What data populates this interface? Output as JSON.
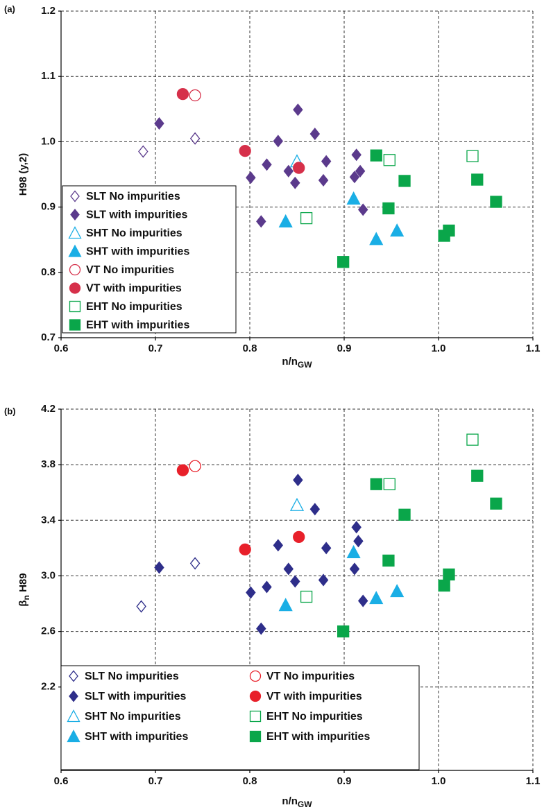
{
  "chart_data": [
    {
      "type": "scatter",
      "panel": "(a)",
      "x_label": [
        "n/n",
        "GW"
      ],
      "y_label": [
        "H98 (y,2)"
      ],
      "xlim": [
        0.6,
        1.1
      ],
      "xticks": [
        0.6,
        0.7,
        0.8,
        0.9,
        {
          "value": 1,
          "label": "1.0"
        },
        1.1
      ],
      "ylim": [
        0.7,
        1.2
      ],
      "yticks": [
        0.7,
        0.8,
        0.9,
        {
          "value": 1,
          "label": "1.0"
        },
        1.1,
        1.2
      ],
      "grid": true,
      "legend": "lower left",
      "legend_columns": 1,
      "series": [
        {
          "name": "SLT No impurities",
          "color": "#5b3a8c",
          "marker": "diamond",
          "filled": false,
          "x": [
            0.687,
            0.742
          ],
          "y": [
            0.985,
            1.005
          ]
        },
        {
          "name": "SLT with impurities",
          "color": "#5b3a8c",
          "marker": "diamond",
          "filled": true,
          "x": [
            0.704,
            0.801,
            0.812,
            0.818,
            0.83,
            0.841,
            0.848,
            0.851,
            0.869,
            0.878,
            0.881,
            0.911,
            0.913,
            0.917,
            0.92
          ],
          "y": [
            1.028,
            0.945,
            0.878,
            0.965,
            1.001,
            0.955,
            0.937,
            1.049,
            1.012,
            0.941,
            0.97,
            0.946,
            0.98,
            0.955,
            0.896
          ]
        },
        {
          "name": "SHT No impurities",
          "color": "#1aaee5",
          "marker": "triangle",
          "filled": false,
          "x": [
            0.85
          ],
          "y": [
            0.97
          ]
        },
        {
          "name": "SHT with impurities",
          "color": "#1aaee5",
          "marker": "triangle",
          "filled": true,
          "x": [
            0.838,
            0.91,
            0.934,
            0.956
          ],
          "y": [
            0.878,
            0.913,
            0.851,
            0.864
          ]
        },
        {
          "name": "VT No impurities",
          "color": "#d6304a",
          "marker": "circle",
          "filled": false,
          "x": [
            0.742
          ],
          "y": [
            1.071
          ]
        },
        {
          "name": "VT with impurities",
          "color": "#d6304a",
          "marker": "circle",
          "filled": true,
          "x": [
            0.729,
            0.795,
            0.852
          ],
          "y": [
            1.073,
            0.986,
            0.96
          ]
        },
        {
          "name": "EHT No impurities",
          "color": "#0aa64a",
          "marker": "square",
          "filled": false,
          "x": [
            0.86,
            0.948,
            1.036
          ],
          "y": [
            0.883,
            0.972,
            0.978
          ]
        },
        {
          "name": "EHT with impurities",
          "color": "#0aa64a",
          "marker": "square",
          "filled": true,
          "x": [
            0.899,
            0.934,
            0.947,
            0.964,
            1.006,
            1.011,
            1.041,
            1.061
          ],
          "y": [
            0.816,
            0.979,
            0.898,
            0.94,
            0.856,
            0.864,
            0.942,
            0.908
          ]
        }
      ]
    },
    {
      "type": "scatter",
      "panel": "(b)",
      "x_label": [
        "n/n",
        "GW"
      ],
      "y_label": [
        "β",
        "n",
        " H89"
      ],
      "xlim": [
        0.6,
        1.1
      ],
      "xticks": [
        0.6,
        0.7,
        0.8,
        0.9,
        {
          "value": 1,
          "label": "1.0"
        },
        1.1
      ],
      "ylim": [
        1.6,
        4.2
      ],
      "yticks": [
        2.2,
        2.6,
        {
          "value": 3,
          "label": "3.0"
        },
        3.4,
        3.8,
        4.2
      ],
      "grid": true,
      "legend": "lower left",
      "legend_columns": 2,
      "series": [
        {
          "name": "SLT No impurities",
          "color": "#2e2e8a",
          "marker": "diamond",
          "filled": false,
          "x": [
            0.685,
            0.742
          ],
          "y": [
            2.78,
            3.09
          ]
        },
        {
          "name": "SLT with impurities",
          "color": "#2e2e8a",
          "marker": "diamond",
          "filled": true,
          "x": [
            0.704,
            0.801,
            0.812,
            0.818,
            0.83,
            0.841,
            0.848,
            0.851,
            0.869,
            0.878,
            0.881,
            0.911,
            0.913,
            0.915,
            0.92
          ],
          "y": [
            3.06,
            2.88,
            2.62,
            2.92,
            3.22,
            3.05,
            2.96,
            3.69,
            3.48,
            2.97,
            3.2,
            3.05,
            3.35,
            3.25,
            2.82
          ]
        },
        {
          "name": "SHT No impurities",
          "color": "#1aaee5",
          "marker": "triangle",
          "filled": false,
          "x": [
            0.85
          ],
          "y": [
            3.51
          ]
        },
        {
          "name": "SHT with impurities",
          "color": "#1aaee5",
          "marker": "triangle",
          "filled": true,
          "x": [
            0.838,
            0.91,
            0.934,
            0.956
          ],
          "y": [
            2.79,
            3.17,
            2.84,
            2.89
          ]
        },
        {
          "name": "VT No impurities",
          "color": "#e8202a",
          "marker": "circle",
          "filled": false,
          "x": [
            0.742
          ],
          "y": [
            3.79
          ]
        },
        {
          "name": "VT with impurities",
          "color": "#e8202a",
          "marker": "circle",
          "filled": true,
          "x": [
            0.729,
            0.795,
            0.852
          ],
          "y": [
            3.76,
            3.19,
            3.28
          ]
        },
        {
          "name": "EHT No impurities",
          "color": "#0aa64a",
          "marker": "square",
          "filled": false,
          "x": [
            0.86,
            0.948,
            1.036
          ],
          "y": [
            2.85,
            3.66,
            3.98
          ]
        },
        {
          "name": "EHT with impurities",
          "color": "#0aa64a",
          "marker": "square",
          "filled": true,
          "x": [
            0.899,
            0.934,
            0.947,
            0.964,
            1.006,
            1.011,
            1.041,
            1.061
          ],
          "y": [
            2.6,
            3.66,
            3.11,
            3.44,
            2.93,
            3.01,
            3.72,
            3.52
          ]
        }
      ]
    }
  ]
}
